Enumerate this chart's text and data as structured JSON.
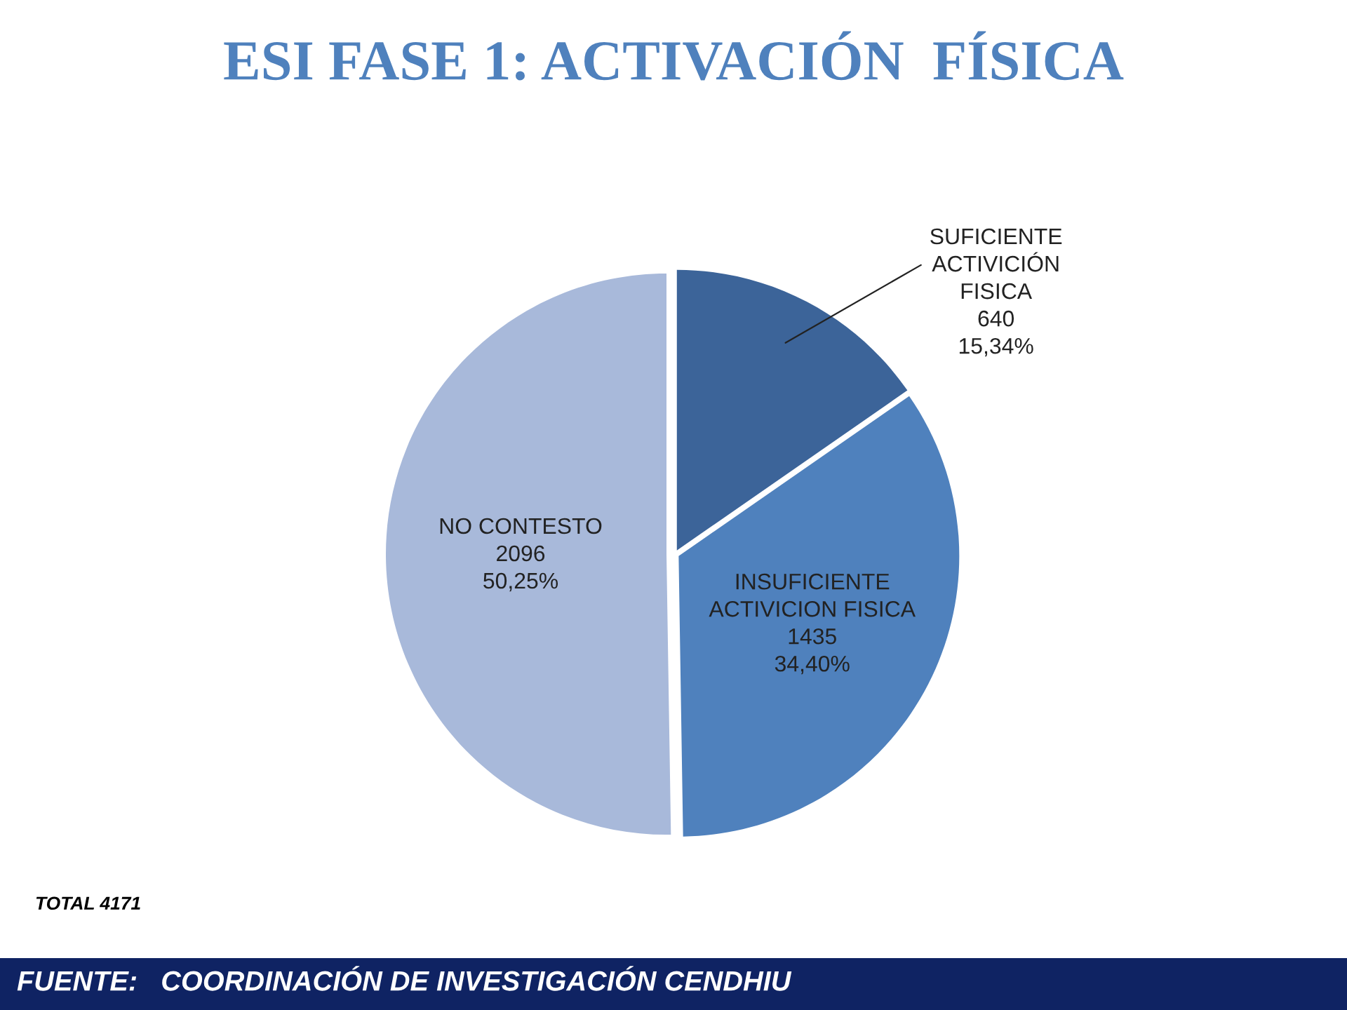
{
  "chart_data": {
    "type": "pie",
    "title": "ESI FASE 1: ACTIVACIÓN  FÍSICA",
    "categories": [
      "SUFICIENTE\nACTIVICIÓN\nFISICA",
      "INSUFICIENTE\nACTIVICION FISICA",
      "NO CONTESTO"
    ],
    "values": [
      640,
      1435,
      2096
    ],
    "value_labels": [
      "640\n15,34%",
      "1435\n34,40%",
      "2096\n50,25%"
    ],
    "colors": [
      "#3c6499",
      "#4f81bd",
      "#a8b9da"
    ],
    "annotations": [
      "TOTAL 4171",
      "FUENTE:   COORDINACIÓN DE INVESTIGACIÓN CENDHIU"
    ]
  }
}
